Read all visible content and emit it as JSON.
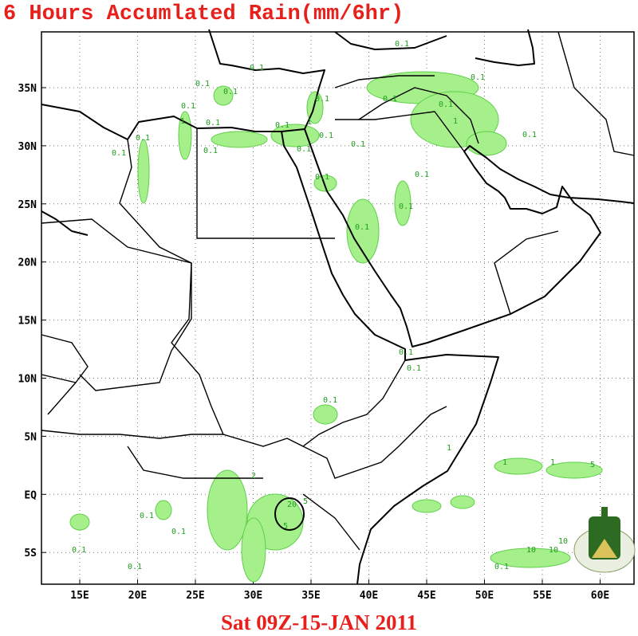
{
  "title": "6 Hours Accumlated Rain(mm/6hr)",
  "footer": "Sat 09Z-15-JAN 2011",
  "lat_labels": [
    "35N",
    "30N",
    "25N",
    "20N",
    "15N",
    "10N",
    "5N",
    "EQ",
    "5S"
  ],
  "lon_labels": [
    "15E",
    "20E",
    "25E",
    "30E",
    "35E",
    "40E",
    "45E",
    "50E",
    "55E",
    "60E"
  ],
  "rain_labels": [
    "0.1",
    "0.1",
    "0.1",
    "0.1",
    "0.1",
    "0.1",
    "1",
    "0.1",
    "0.1",
    "0.1",
    "0.1",
    "0.1",
    "0.1",
    "0.1",
    "1",
    "0.1",
    "0.1",
    "0.1",
    "0.1",
    "0.1",
    "0.1",
    "0.1",
    "0.1",
    "0.1",
    "1",
    "5",
    "0.1",
    "1",
    "10",
    "10",
    "10",
    "0.1",
    "2",
    "1",
    "5",
    "20",
    "5",
    "0.1",
    "0.1",
    "0.1",
    "0.1",
    "1",
    "0.1",
    "0.1"
  ]
}
